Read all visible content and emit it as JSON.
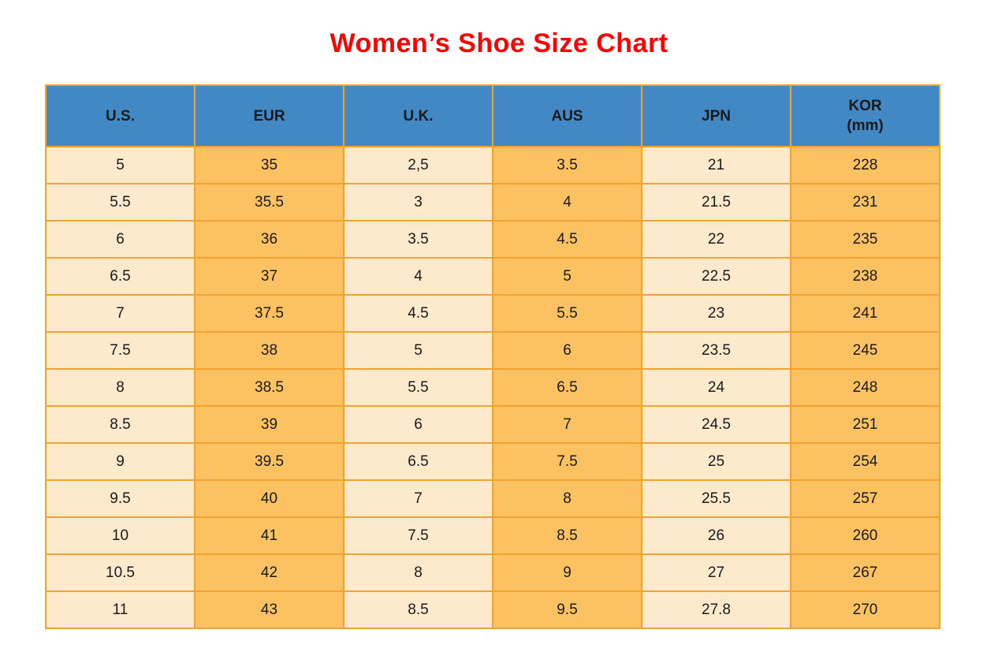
{
  "page": {
    "title": "Women’s Shoe Size Chart"
  },
  "colors": {
    "header_bg": "#4288C5",
    "col_light": "#FDE9CC",
    "col_dark": "#FCC161",
    "border": "#F0A330",
    "title": "#FF0000"
  },
  "chart_data": {
    "type": "table",
    "title": "Women’s Shoe Size Chart",
    "columns": [
      {
        "label": "U.S."
      },
      {
        "label": "EUR"
      },
      {
        "label": "U.K."
      },
      {
        "label": "AUS"
      },
      {
        "label": "JPN"
      },
      {
        "label": "KOR",
        "sublabel": "(mm)"
      }
    ],
    "column_styles": [
      "light",
      "dark",
      "light",
      "dark",
      "light",
      "dark"
    ],
    "rows": [
      [
        "5",
        "35",
        "2,5",
        "3.5",
        "21",
        "228"
      ],
      [
        "5.5",
        "35.5",
        "3",
        "4",
        "21.5",
        "231"
      ],
      [
        "6",
        "36",
        "3.5",
        "4.5",
        "22",
        "235"
      ],
      [
        "6.5",
        "37",
        "4",
        "5",
        "22.5",
        "238"
      ],
      [
        "7",
        "37.5",
        "4.5",
        "5.5",
        "23",
        "241"
      ],
      [
        "7.5",
        "38",
        "5",
        "6",
        "23.5",
        "245"
      ],
      [
        "8",
        "38.5",
        "5.5",
        "6.5",
        "24",
        "248"
      ],
      [
        "8.5",
        "39",
        "6",
        "7",
        "24.5",
        "251"
      ],
      [
        "9",
        "39.5",
        "6.5",
        "7.5",
        "25",
        "254"
      ],
      [
        "9.5",
        "40",
        "7",
        "8",
        "25.5",
        "257"
      ],
      [
        "10",
        "41",
        "7.5",
        "8.5",
        "26",
        "260"
      ],
      [
        "10.5",
        "42",
        "8",
        "9",
        "27",
        "267"
      ],
      [
        "11",
        "43",
        "8.5",
        "9.5",
        "27.8",
        "270"
      ]
    ]
  }
}
